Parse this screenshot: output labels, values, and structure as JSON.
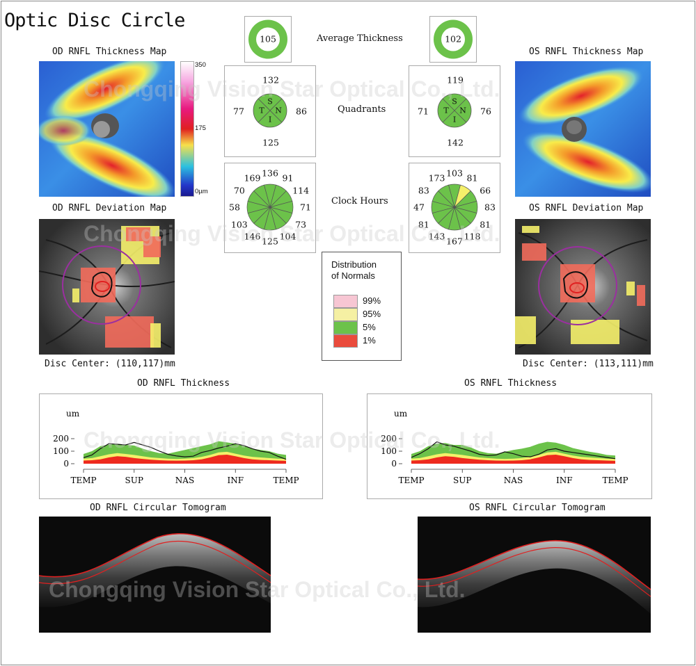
{
  "page_title": "Optic Disc Circle",
  "watermark": "Chongqing Vision Star Optical Co., Ltd.",
  "center": {
    "avg_label": "Average Thickness",
    "quad_label": "Quadrants",
    "clock_label": "Clock Hours",
    "quadrant_letters": {
      "s": "S",
      "t": "T",
      "n": "N",
      "i": "I"
    }
  },
  "od": {
    "thickness_map_title": "OD RNFL Thickness Map",
    "deviation_map_title": "OD RNFL Deviation Map",
    "disc_center": "Disc Center: (110,117)mm",
    "rnfl_thickness_title": "OD RNFL Thickness",
    "tomogram_title": "OD RNFL Circular Tomogram",
    "average": "105",
    "quadrants": {
      "s": "132",
      "t": "77",
      "n": "86",
      "i": "125"
    },
    "clock": [
      "136",
      "91",
      "114",
      "71",
      "73",
      "104",
      "125",
      "146",
      "103",
      "58",
      "70",
      "169"
    ]
  },
  "os": {
    "thickness_map_title": "OS RNFL Thickness Map",
    "deviation_map_title": "OS RNFL Deviation Map",
    "disc_center": "Disc Center: (113,111)mm",
    "rnfl_thickness_title": "OS RNFL Thickness",
    "tomogram_title": "OS RNFL Circular Tomogram",
    "average": "102",
    "quadrants": {
      "s": "119",
      "t": "71",
      "n": "76",
      "i": "142"
    },
    "clock": [
      "103",
      "81",
      "66",
      "83",
      "81",
      "118",
      "167",
      "143",
      "81",
      "47",
      "83",
      "173"
    ]
  },
  "colorbar": {
    "top": "350",
    "mid": "175",
    "bottom": "0µm"
  },
  "legend": {
    "title_line1": "Distribution",
    "title_line2": "of Normals",
    "items": [
      {
        "label": "99%",
        "color": "#f7c6d3"
      },
      {
        "label": "95%",
        "color": "#f5f0a3"
      },
      {
        "label": "5%",
        "color": "#6cc24a"
      },
      {
        "label": "1%",
        "color": "#ea4b3c"
      }
    ]
  },
  "colors": {
    "normal": "#6cc24a",
    "borderline": "#f5f06a",
    "outside": "#ee2a1e",
    "superthin": "#f7c6d3"
  },
  "chart_data": [
    {
      "type": "area",
      "title": "OD RNFL Thickness",
      "ylabel": "um",
      "x": [
        0,
        1,
        2,
        3,
        4,
        5,
        6,
        7,
        8,
        9,
        10,
        11,
        12,
        13,
        14,
        15,
        16,
        17,
        18,
        19,
        20,
        21,
        22,
        23,
        24
      ],
      "xticks": [
        "TEMP",
        "SUP",
        "NAS",
        "INF",
        "TEMP"
      ],
      "yticks": [
        "200",
        "100",
        "0"
      ],
      "ylim": [
        0,
        250
      ],
      "series": [
        {
          "values": [
            78,
            100,
            140,
            152,
            160,
            150,
            145,
            120,
            100,
            85,
            80,
            95,
            110,
            125,
            140,
            155,
            180,
            170,
            160,
            140,
            120,
            110,
            100,
            80,
            70
          ]
        },
        {
          "values": [
            40,
            45,
            60,
            75,
            85,
            78,
            70,
            60,
            50,
            45,
            40,
            38,
            40,
            45,
            55,
            70,
            90,
            95,
            80,
            65,
            55,
            50,
            45,
            40,
            38
          ]
        },
        {
          "values": [
            25,
            28,
            35,
            50,
            60,
            55,
            45,
            38,
            32,
            28,
            25,
            24,
            25,
            28,
            35,
            50,
            68,
            72,
            60,
            45,
            35,
            30,
            28,
            25,
            23
          ]
        },
        {
          "values": [
            48,
            70,
            120,
            160,
            155,
            150,
            170,
            150,
            130,
            100,
            75,
            62,
            55,
            60,
            90,
            105,
            125,
            140,
            160,
            145,
            120,
            100,
            90,
            60,
            35
          ]
        }
      ]
    },
    {
      "type": "area",
      "title": "OS RNFL Thickness",
      "ylabel": "um",
      "x": [
        0,
        1,
        2,
        3,
        4,
        5,
        6,
        7,
        8,
        9,
        10,
        11,
        12,
        13,
        14,
        15,
        16,
        17,
        18,
        19,
        20,
        21,
        22,
        23,
        24
      ],
      "xticks": [
        "TEMP",
        "SUP",
        "NAS",
        "INF",
        "TEMP"
      ],
      "yticks": [
        "200",
        "100",
        "0"
      ],
      "ylim": [
        0,
        250
      ],
      "series": [
        {
          "values": [
            78,
            100,
            140,
            160,
            165,
            150,
            150,
            130,
            100,
            85,
            80,
            95,
            110,
            120,
            135,
            160,
            175,
            168,
            150,
            125,
            110,
            95,
            85,
            70,
            65
          ]
        },
        {
          "values": [
            40,
            45,
            60,
            75,
            85,
            78,
            70,
            60,
            50,
            45,
            40,
            38,
            40,
            45,
            55,
            70,
            90,
            95,
            80,
            65,
            55,
            50,
            45,
            40,
            38
          ]
        },
        {
          "values": [
            25,
            28,
            35,
            50,
            60,
            55,
            45,
            38,
            32,
            28,
            25,
            24,
            25,
            28,
            35,
            50,
            68,
            72,
            60,
            45,
            35,
            30,
            28,
            25,
            23
          ]
        },
        {
          "values": [
            50,
            80,
            120,
            175,
            150,
            140,
            120,
            100,
            75,
            65,
            70,
            95,
            80,
            60,
            55,
            75,
            110,
            120,
            100,
            90,
            80,
            70,
            60,
            50,
            40
          ]
        }
      ]
    }
  ]
}
